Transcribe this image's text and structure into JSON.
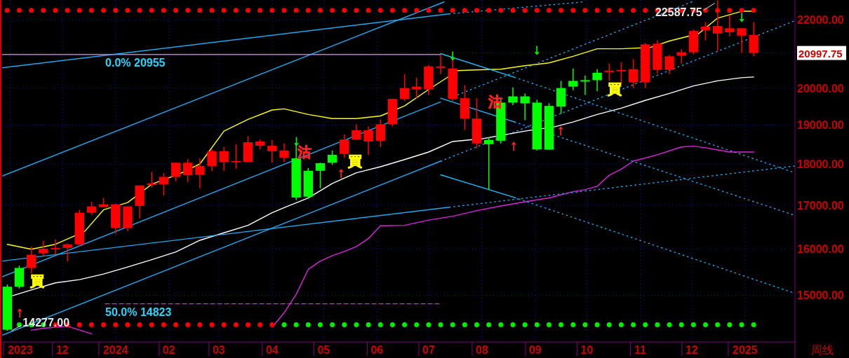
{
  "chart_data": {
    "type": "candlestick",
    "xlabel": "周线",
    "grid": true,
    "log": "y",
    "xlim": [
      "2023-10-27",
      "2025-01-30"
    ],
    "ylim": [
      14060,
      22600
    ],
    "xticks": [
      {
        "value": "2023-11-01",
        "label": "2023"
      },
      {
        "value": "2023-12-01",
        "label": "12"
      },
      {
        "value": "2024-01-01",
        "label": "2024"
      },
      {
        "value": "2024-02-01",
        "label": "02"
      },
      {
        "value": "2024-03-01",
        "label": "03"
      },
      {
        "value": "2024-04-01",
        "label": "04"
      },
      {
        "value": "2024-05-01",
        "label": "05"
      },
      {
        "value": "2024-06-01",
        "label": "06"
      },
      {
        "value": "2024-07-01",
        "label": "07"
      },
      {
        "value": "2024-08-01",
        "label": "08"
      },
      {
        "value": "2024-09-01",
        "label": "09"
      },
      {
        "value": "2024-10-01",
        "label": "10"
      },
      {
        "value": "2024-11-01",
        "label": "11"
      },
      {
        "value": "2024-12-01",
        "label": "12"
      },
      {
        "value": "2025-01-01",
        "label": "2025"
      }
    ],
    "yticks": [
      {
        "value": 15000,
        "label": "15000.00"
      },
      {
        "value": 16000,
        "label": "16000.00"
      },
      {
        "value": 17000,
        "label": "17000.00"
      },
      {
        "value": 18000,
        "label": "18000.00"
      },
      {
        "value": 19000,
        "label": "19000.00"
      },
      {
        "value": 20000,
        "label": "20000.00"
      },
      {
        "value": 21000,
        "label": null
      },
      {
        "value": 22000,
        "label": "22000.00"
      }
    ],
    "x": [
      "2023-10-30",
      "2023-11-06",
      "2023-11-13",
      "2023-11-20",
      "2023-11-27",
      "2023-12-04",
      "2023-12-11",
      "2023-12-18",
      "2023-12-25",
      "2024-01-01",
      "2024-01-08",
      "2024-01-15",
      "2024-01-22",
      "2024-01-29",
      "2024-02-05",
      "2024-02-12",
      "2024-02-19",
      "2024-02-26",
      "2024-03-04",
      "2024-03-11",
      "2024-03-18",
      "2024-03-25",
      "2024-04-01",
      "2024-04-08",
      "2024-04-15",
      "2024-04-22",
      "2024-04-29",
      "2024-05-06",
      "2024-05-13",
      "2024-05-20",
      "2024-05-27",
      "2024-06-03",
      "2024-06-10",
      "2024-06-17",
      "2024-06-24",
      "2024-07-01",
      "2024-07-08",
      "2024-07-15",
      "2024-07-22",
      "2024-07-29",
      "2024-08-05",
      "2024-08-12",
      "2024-08-19",
      "2024-08-26",
      "2024-09-02",
      "2024-09-09",
      "2024-09-16",
      "2024-09-23",
      "2024-09-30",
      "2024-10-07",
      "2024-10-14",
      "2024-10-21",
      "2024-10-28",
      "2024-11-04",
      "2024-11-11",
      "2024-11-18",
      "2024-11-25",
      "2024-12-02",
      "2024-12-09",
      "2024-12-16",
      "2024-12-23",
      "2024-12-30",
      "2025-01-06"
    ],
    "ohlc": [
      [
        14300,
        15225,
        14277,
        15180
      ],
      [
        15180,
        15630,
        15140,
        15580
      ],
      [
        15870,
        16050,
        15460,
        15580
      ],
      [
        16000,
        16180,
        15840,
        15900
      ],
      [
        16020,
        16210,
        15870,
        15990
      ],
      [
        16100,
        16120,
        15720,
        16020
      ],
      [
        16820,
        16890,
        16050,
        16100
      ],
      [
        16970,
        17080,
        16770,
        16820
      ],
      [
        17020,
        17170,
        16950,
        16950
      ],
      [
        17020,
        17030,
        16340,
        16470
      ],
      [
        16970,
        16970,
        16400,
        16470
      ],
      [
        17470,
        17470,
        16690,
        16980
      ],
      [
        17520,
        17800,
        17420,
        17480
      ],
      [
        17680,
        17770,
        17230,
        17500
      ],
      [
        18030,
        18030,
        17570,
        17680
      ],
      [
        18030,
        18120,
        17550,
        17720
      ],
      [
        17950,
        18140,
        17400,
        17730
      ],
      [
        18320,
        18370,
        17820,
        17950
      ],
      [
        18320,
        18430,
        17830,
        18050
      ],
      [
        18070,
        18500,
        17880,
        18040
      ],
      [
        18550,
        18710,
        18050,
        18050
      ],
      [
        18570,
        18620,
        18370,
        18460
      ],
      [
        18460,
        18610,
        18030,
        18320
      ],
      [
        18340,
        18520,
        18050,
        18160
      ],
      [
        17180,
        18530,
        17120,
        18140
      ],
      [
        17200,
        17900,
        17150,
        17830
      ],
      [
        17830,
        18030,
        17400,
        18020
      ],
      [
        18030,
        18340,
        17980,
        18230
      ],
      [
        18620,
        18750,
        18160,
        18250
      ],
      [
        18860,
        19020,
        18620,
        18620
      ],
      [
        18860,
        18960,
        18230,
        18570
      ],
      [
        19020,
        19150,
        18430,
        18590
      ],
      [
        19700,
        19700,
        18960,
        19020
      ],
      [
        20000,
        20390,
        19640,
        19700
      ],
      [
        20040,
        20290,
        19720,
        19960
      ],
      [
        20610,
        20650,
        19810,
        19960
      ],
      [
        20610,
        20955,
        20390,
        20570
      ],
      [
        20550,
        20840,
        19640,
        19700
      ],
      [
        19720,
        20080,
        18870,
        19170
      ],
      [
        19170,
        19720,
        18390,
        18520
      ],
      [
        18500,
        18680,
        17370,
        18610
      ],
      [
        18590,
        19680,
        18520,
        19600
      ],
      [
        19600,
        20020,
        19530,
        19770
      ],
      [
        19580,
        19850,
        19130,
        19770
      ],
      [
        18370,
        19680,
        18340,
        19600
      ],
      [
        18360,
        19580,
        18360,
        19510
      ],
      [
        19490,
        20200,
        19300,
        20000
      ],
      [
        20040,
        20550,
        19940,
        20200
      ],
      [
        20180,
        20350,
        19810,
        20220
      ],
      [
        20220,
        20530,
        19910,
        20430
      ],
      [
        20490,
        20690,
        20200,
        20450
      ],
      [
        20510,
        20730,
        20100,
        20470
      ],
      [
        20530,
        20820,
        20000,
        20160
      ],
      [
        21250,
        21290,
        20000,
        20160
      ],
      [
        21270,
        21370,
        20410,
        20510
      ],
      [
        20900,
        20940,
        20390,
        20510
      ],
      [
        21020,
        21100,
        20690,
        20920
      ],
      [
        21650,
        21690,
        20960,
        21020
      ],
      [
        21780,
        21920,
        21370,
        21670
      ],
      [
        21800,
        22587.75,
        21060,
        21570
      ],
      [
        21730,
        22120,
        21490,
        21610
      ],
      [
        21730,
        21730,
        21000,
        21510
      ],
      [
        21530,
        21920,
        20900,
        20997.75
      ]
    ],
    "colors": [
      "#00ff00",
      "#00ff00",
      "#ff0000",
      "#ff0000",
      "#ff0000",
      "#ff0000",
      "#ff0000",
      "#ff0000",
      "#ff0000",
      "#ff0000",
      "#ff0000",
      "#ff0000",
      "#ff0000",
      "#ff0000",
      "#ff0000",
      "#ff0000",
      "#ff0000",
      "#ff0000",
      "#ff0000",
      "#ff0000",
      "#ff0000",
      "#ff0000",
      "#ff0000",
      "#ff0000",
      "#00ff00",
      "#00ff00",
      "#00ff00",
      "#00ff00",
      "#ff0000",
      "#ff0000",
      "#ff0000",
      "#ff0000",
      "#ff0000",
      "#ff0000",
      "#ff0000",
      "#ff0000",
      "#ff0000",
      "#ff0000",
      "#ff0000",
      "#ff0000",
      "#00ff00",
      "#00ff00",
      "#00ff00",
      "#00ff00",
      "#00ff00",
      "#00ff00",
      "#00ff00",
      "#00ff00",
      "#00ff00",
      "#00ff00",
      "#ff0000",
      "#ff0000",
      "#ff0000",
      "#ff0000",
      "#ff0000",
      "#ff0000",
      "#ff0000",
      "#ff0000",
      "#ff0000",
      "#ff0000",
      "#ff0000",
      "#ff0000",
      "#ff0000"
    ],
    "series": [
      {
        "type": "line",
        "color": "#ffff00",
        "x": [
          "2023-10-30",
          "2023-11-13",
          "2023-11-27",
          "2023-12-14",
          "2023-12-25",
          "2024-01-08",
          "2024-01-22",
          "2024-02-08",
          "2024-02-19",
          "2024-03-04",
          "2024-03-18",
          "2024-04-01",
          "2024-04-08",
          "2024-04-22",
          "2024-05-06",
          "2024-05-20",
          "2024-06-03",
          "2024-06-17",
          "2024-07-01",
          "2024-07-18",
          "2024-07-29",
          "2024-08-12",
          "2024-08-26",
          "2024-09-09",
          "2024-09-23",
          "2024-10-07",
          "2024-10-21",
          "2024-11-07",
          "2024-11-18",
          "2024-12-05",
          "2024-12-16",
          "2024-12-30",
          "2025-01-06"
        ],
        "values": [
          16100,
          15990,
          16100,
          16390,
          16890,
          17060,
          17500,
          17770,
          18000,
          18840,
          19150,
          19400,
          19430,
          19280,
          19170,
          19170,
          19240,
          19510,
          19960,
          20490,
          20510,
          20530,
          20630,
          20710,
          20900,
          21120,
          21120,
          21160,
          21350,
          21570,
          22040,
          22250,
          22250
        ]
      },
      {
        "type": "line",
        "color": "#ffffff",
        "x": [
          "2023-11-02",
          "2023-11-13",
          "2023-11-27",
          "2023-12-11",
          "2023-12-25",
          "2024-01-08",
          "2024-01-22",
          "2024-02-05",
          "2024-02-19",
          "2024-03-04",
          "2024-03-18",
          "2024-04-01",
          "2024-04-08",
          "2024-04-22",
          "2024-05-06",
          "2024-05-20",
          "2024-06-03",
          "2024-06-17",
          "2024-07-01",
          "2024-07-15",
          "2024-08-01",
          "2024-08-15",
          "2024-08-26",
          "2024-09-12",
          "2024-09-23",
          "2024-10-07",
          "2024-10-21",
          "2024-11-04",
          "2024-11-18",
          "2024-12-02",
          "2024-12-16",
          "2024-12-30",
          "2025-01-06"
        ],
        "values": [
          14990,
          15110,
          15260,
          15330,
          15450,
          15600,
          15760,
          15930,
          16190,
          16360,
          16530,
          16820,
          16940,
          17170,
          17520,
          17780,
          17930,
          18110,
          18300,
          18570,
          18640,
          18750,
          18840,
          18950,
          19080,
          19280,
          19450,
          19660,
          19850,
          20060,
          20200,
          20290,
          20310
        ]
      },
      {
        "type": "line",
        "color": "#e020e0",
        "x": [
          "2023-11-13",
          "2023-11-20",
          "2023-12-04",
          "2023-12-18"
        ],
        "values": [
          14290,
          14330,
          14370,
          14220
        ]
      },
      {
        "type": "line",
        "color": "#e020e0",
        "x": [
          "2024-04-01",
          "2024-04-08",
          "2024-04-15",
          "2024-04-22",
          "2024-04-29",
          "2024-05-06",
          "2024-05-13",
          "2024-05-20",
          "2024-05-27",
          "2024-06-03",
          "2024-06-17",
          "2024-07-01",
          "2024-07-15",
          "2024-07-29",
          "2024-08-12",
          "2024-08-26",
          "2024-09-09",
          "2024-09-23",
          "2024-09-30",
          "2024-10-07",
          "2024-10-14",
          "2024-10-21",
          "2024-10-28",
          "2024-11-11",
          "2024-11-25",
          "2024-12-02",
          "2024-12-09",
          "2024-12-23",
          "2025-01-06"
        ],
        "values": [
          14350,
          14640,
          15020,
          15550,
          15730,
          15850,
          15940,
          16050,
          16230,
          16520,
          16530,
          16650,
          16740,
          16870,
          16980,
          17080,
          17170,
          17320,
          17370,
          17450,
          17720,
          17870,
          18070,
          18230,
          18430,
          18450,
          18410,
          18300,
          18300
        ]
      },
      {
        "type": "line",
        "color": "#1ea8f0",
        "line_style": "solid",
        "x": [
          "2023-10-27",
          "2024-07-13"
        ],
        "values": [
          20570,
          22170
        ]
      },
      {
        "type": "line",
        "color": "#1ea8f0",
        "line_style": "solid",
        "x": [
          "2023-10-27",
          "2024-07-10"
        ],
        "values": [
          17700,
          22540
        ]
      },
      {
        "type": "line",
        "color": "#1ea8f0",
        "line_style": "solid",
        "x": [
          "2023-10-27",
          "2024-07-08"
        ],
        "values": [
          15390,
          19620
        ]
      },
      {
        "type": "line",
        "color": "#1ea8f0",
        "line_style": "solid",
        "x": [
          "2023-10-27",
          "2024-07-08"
        ],
        "values": [
          14190,
          18070
        ]
      },
      {
        "type": "line",
        "color": "#1ea8f0",
        "line_style": "solid",
        "x": [
          "2023-10-27",
          "2024-07-13"
        ],
        "values": [
          15730,
          16950
        ]
      },
      {
        "type": "line",
        "color": "#1ea8f0",
        "line_style": "dotted",
        "x": [
          "2024-07-13",
          "2024-12-01"
        ],
        "values": [
          19720,
          22540
        ]
      },
      {
        "type": "line",
        "color": "#1ea8f0",
        "line_style": "dotted",
        "x": [
          "2024-07-08",
          "2025-01-30"
        ],
        "values": [
          18070,
          21960
        ]
      },
      {
        "type": "line",
        "color": "#1ea8f0",
        "line_style": "dotted",
        "x": [
          "2024-07-13",
          "2025-01-30"
        ],
        "values": [
          16950,
          17950
        ]
      },
      {
        "type": "line",
        "color": "#1ea8f0",
        "line_style": "dotted",
        "x": [
          "2024-07-13",
          "2024-09-29"
        ],
        "values": [
          22170,
          22540
        ]
      },
      {
        "type": "line",
        "color": "#10c0ff",
        "line_style": "solid",
        "x": [
          "2024-07-08",
          "2024-08-20"
        ],
        "values": [
          20980,
          20300
        ]
      },
      {
        "type": "line",
        "color": "#10c0ff",
        "line_style": "solid",
        "x": [
          "2024-07-08",
          "2024-08-20"
        ],
        "values": [
          19720,
          19080
        ]
      },
      {
        "type": "line",
        "color": "#10c0ff",
        "line_style": "solid",
        "x": [
          "2024-07-08",
          "2024-08-20"
        ],
        "values": [
          17730,
          17180
        ]
      },
      {
        "type": "line",
        "color": "#1ea8f0",
        "line_style": "dotted",
        "x": [
          "2024-08-20",
          "2025-01-30"
        ],
        "values": [
          20300,
          17780
        ]
      },
      {
        "type": "line",
        "color": "#1ea8f0",
        "line_style": "dotted",
        "x": [
          "2024-08-20",
          "2025-01-30"
        ],
        "values": [
          19080,
          16760
        ]
      },
      {
        "type": "line",
        "color": "#1ea8f0",
        "line_style": "dotted",
        "x": [
          "2024-08-20",
          "2025-01-30"
        ],
        "values": [
          17180,
          15040
        ]
      },
      {
        "type": "line",
        "color": "#b080d0",
        "line_style": "solid",
        "x": [
          "2023-10-27",
          "2024-07-08"
        ],
        "values": [
          20955,
          20955
        ]
      },
      {
        "type": "line",
        "color": "#e020e0",
        "line_style": "dashed",
        "x": [
          "2023-12-26",
          "2024-07-07"
        ],
        "values": [
          14823,
          14823
        ]
      },
      {
        "type": "scatter",
        "marker": "circle",
        "color": "#ff0000",
        "values": [
          22280,
          22280,
          22280,
          22280,
          22280,
          22280,
          22280,
          22280,
          22280,
          22280,
          22280,
          22280,
          22280,
          22280,
          22280,
          22280,
          22280,
          22280,
          22280,
          22280,
          22280,
          22280,
          22280,
          22280,
          22280,
          22280,
          22280,
          22280,
          22280,
          22280,
          22280,
          22280,
          22280,
          22280,
          22280,
          22280,
          22280,
          22280,
          22280,
          22280,
          22280,
          22280,
          22280,
          22280,
          22280,
          22280,
          22280,
          22280,
          22280,
          22280,
          22280,
          22280,
          22280,
          22280,
          22280,
          22280,
          22280,
          22280,
          22280,
          22280,
          22280,
          22280,
          22280
        ]
      },
      {
        "type": "scatter",
        "marker": "circle",
        "color": "#ff0000",
        "values": [
          null,
          14400,
          14400,
          14400,
          14400,
          14400,
          14400,
          14400,
          14400,
          14400,
          14400,
          14400,
          14400,
          14400,
          14400,
          14400,
          14400,
          14400,
          14400,
          14400,
          14400,
          14400,
          14400,
          14400,
          14400,
          14400,
          14400,
          14400,
          14400,
          14400,
          14400,
          14400,
          14400,
          14400,
          14400,
          14400,
          14400,
          14400,
          14400,
          14400,
          14400,
          14400,
          14400,
          14400,
          14400,
          14400,
          14400,
          14400,
          14400,
          14400,
          14400,
          14400,
          14400,
          14400,
          14400,
          14400,
          14400,
          14400,
          14400,
          14400,
          14400,
          14400,
          14400
        ],
        "colors": [
          null,
          "#00ee00",
          "#00ee00",
          "#00ee00",
          null,
          null,
          null,
          null,
          null,
          null,
          null,
          null,
          null,
          null,
          null,
          null,
          null,
          null,
          null,
          null,
          null,
          null,
          null,
          "#00ee00",
          "#00ee00",
          "#00ee00",
          "#00ee00",
          "#00ee00",
          "#00ee00",
          "#00ee00",
          "#00ee00",
          "#00ee00",
          "#00ee00",
          "#00ee00",
          "#00ee00",
          "#00ee00",
          "#00ee00",
          "#00ee00",
          "#00ee00",
          "#00ee00",
          "#00ee00",
          "#00ee00",
          "#00ee00",
          "#00ee00",
          "#00ee00",
          "#00ee00",
          "#00ee00",
          "#00ee00",
          "#00ee00",
          "#00ee00",
          "#00ee00",
          "#00ee00",
          "#00ee00",
          "#00ee00",
          "#00ee00",
          "#00ee00",
          "#00ee00",
          "#00ee00",
          "#00ee00",
          "#00ee00",
          "#00ee00",
          "#00ee00",
          "#00ee00"
        ]
      }
    ],
    "annotations": [
      {
        "text": "0.0% 20955",
        "x": "2023-12-26",
        "y": 20955
      },
      {
        "text": "50.0% 14823",
        "x": "2023-12-26",
        "y": 14823
      },
      "22587.75",
      {
        "text": "14277.00",
        "x": "2023-10-30",
        "y": 14277
      },
      "20997.75",
      "↑",
      "↑",
      "↑",
      "↑",
      {
        "text": "↓",
        "x": "2024-04-15",
        "y": 18600
      },
      "↓",
      "↓",
      {
        "text": "↓",
        "x": "2024-12-30",
        "y": 22100
      },
      "買",
      "買",
      {
        "text": "買",
        "x": "2024-10-17",
        "y": 19980
      },
      {
        "text": "沽",
        "x": "2024-04-20",
        "y": 18300
      },
      {
        "text": "沽",
        "x": "2024-08-09",
        "y": 19620
      }
    ]
  }
}
